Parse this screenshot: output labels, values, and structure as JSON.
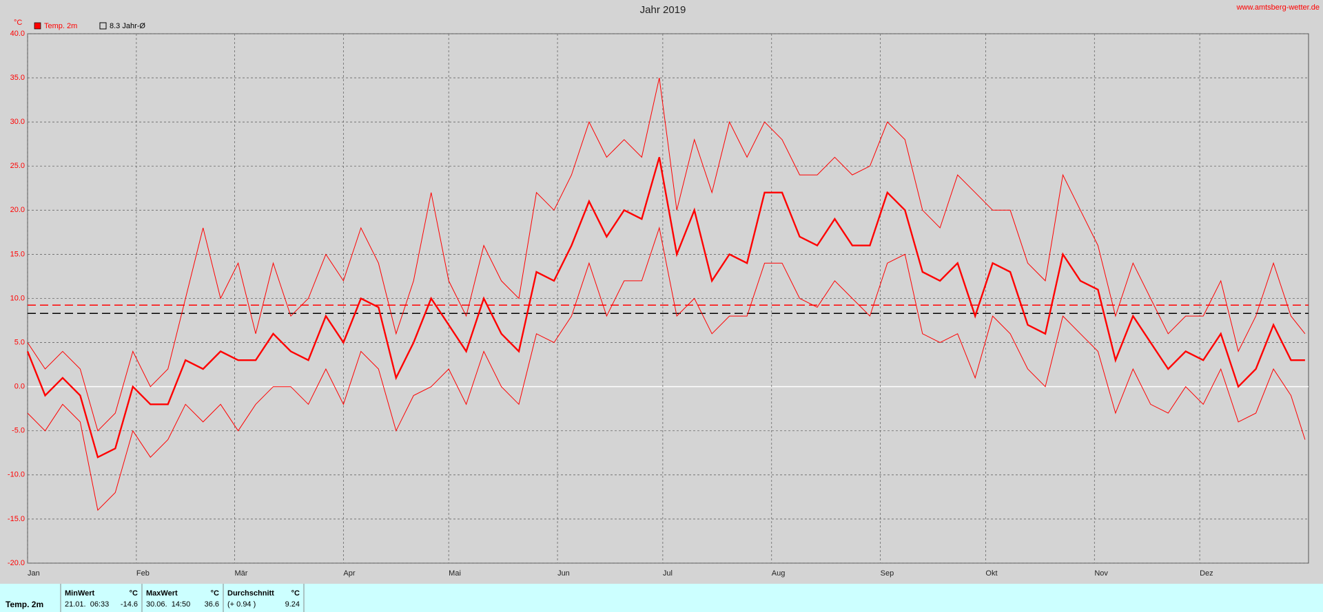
{
  "chart_data": {
    "type": "line",
    "title": "Jahr 2019",
    "source": "www.amtsberg-wetter.de",
    "y_unit": "°C",
    "x": [
      1,
      6,
      11,
      16,
      21,
      26,
      31,
      36,
      41,
      46,
      51,
      56,
      61,
      66,
      71,
      76,
      81,
      86,
      91,
      96,
      101,
      106,
      111,
      116,
      121,
      126,
      131,
      136,
      141,
      146,
      151,
      156,
      161,
      166,
      171,
      176,
      181,
      186,
      191,
      196,
      201,
      206,
      211,
      216,
      221,
      226,
      231,
      236,
      241,
      246,
      251,
      256,
      261,
      266,
      271,
      276,
      281,
      286,
      291,
      296,
      301,
      306,
      311,
      316,
      321,
      326,
      331,
      336,
      341,
      346,
      351,
      356,
      361,
      365
    ],
    "series": [
      {
        "color": "#ff0000",
        "values": [
          5,
          2,
          4,
          2,
          -5,
          -3,
          4,
          0,
          2,
          10,
          18,
          10,
          14,
          6,
          14,
          8,
          10,
          15,
          12,
          18,
          14,
          6,
          12,
          22,
          12,
          8,
          16,
          12,
          10,
          22,
          20,
          24,
          30,
          26,
          28,
          26,
          35,
          20,
          28,
          22,
          30,
          26,
          30,
          28,
          24,
          24,
          26,
          24,
          25,
          30,
          28,
          20,
          18,
          24,
          22,
          20,
          20,
          14,
          12,
          24,
          20,
          16,
          8,
          14,
          10,
          6,
          8,
          8,
          12,
          4,
          8,
          14,
          8,
          6
        ]
      },
      {
        "name": "Temp. 2m",
        "color": "#ff0000",
        "values": [
          4,
          -1,
          1,
          -1,
          -8,
          -7,
          0,
          -2,
          -2,
          3,
          2,
          4,
          3,
          3,
          6,
          4,
          3,
          8,
          5,
          10,
          9,
          1,
          5,
          10,
          7,
          4,
          10,
          6,
          4,
          13,
          12,
          16,
          21,
          17,
          20,
          19,
          26,
          15,
          20,
          12,
          15,
          14,
          22,
          22,
          17,
          16,
          19,
          16,
          16,
          22,
          20,
          13,
          12,
          14,
          8,
          14,
          13,
          7,
          6,
          15,
          12,
          11,
          3,
          8,
          5,
          2,
          4,
          3,
          6,
          0,
          2,
          7,
          3,
          3
        ]
      },
      {
        "color": "#ff0000",
        "values": [
          -3,
          -5,
          -2,
          -4,
          -14,
          -12,
          -5,
          -8,
          -6,
          -2,
          -4,
          -2,
          -5,
          -2,
          0,
          0,
          -2,
          2,
          -2,
          4,
          2,
          -5,
          -1,
          0,
          2,
          -2,
          4,
          0,
          -2,
          6,
          5,
          8,
          14,
          8,
          12,
          12,
          18,
          8,
          10,
          6,
          8,
          8,
          14,
          14,
          10,
          9,
          12,
          10,
          8,
          14,
          15,
          6,
          5,
          6,
          1,
          8,
          6,
          2,
          0,
          8,
          6,
          4,
          -3,
          2,
          -2,
          -3,
          0,
          -2,
          2,
          -4,
          -3,
          2,
          -1,
          -6
        ]
      }
    ],
    "reference_lines": [
      {
        "value": 9.24,
        "color": "#ff0000"
      },
      {
        "name": "8.3 Jahr-Ø",
        "value": 8.3,
        "color": "#000000"
      }
    ],
    "xlim": [
      1,
      366
    ],
    "xticks": [
      {
        "value": 1,
        "label": "Jan"
      },
      {
        "value": 32,
        "label": "Feb"
      },
      {
        "value": 60,
        "label": "Mär"
      },
      {
        "value": 91,
        "label": "Apr"
      },
      {
        "value": 121,
        "label": "Mai"
      },
      {
        "value": 152,
        "label": "Jun"
      },
      {
        "value": 182,
        "label": "Jul"
      },
      {
        "value": 213,
        "label": "Aug"
      },
      {
        "value": 244,
        "label": "Sep"
      },
      {
        "value": 274,
        "label": "Okt"
      },
      {
        "value": 305,
        "label": "Nov"
      },
      {
        "value": 335,
        "label": "Dez"
      }
    ],
    "ylim": [
      -20,
      40
    ],
    "yticks": [
      {
        "value": -20,
        "label": "-20.0"
      },
      {
        "value": -15,
        "label": "-15.0"
      },
      {
        "value": -10,
        "label": "-10.0"
      },
      {
        "value": -5,
        "label": "-5.0"
      },
      {
        "value": 0,
        "label": "0.0"
      },
      {
        "value": 5,
        "label": "5.0"
      },
      {
        "value": 10,
        "label": "10.0"
      },
      {
        "value": 15,
        "label": "15.0"
      },
      {
        "value": 20,
        "label": "20.0"
      },
      {
        "value": 25,
        "label": "25.0"
      },
      {
        "value": 30,
        "label": "30.0"
      },
      {
        "value": 35,
        "label": "35.0"
      },
      {
        "value": 40,
        "label": "40.0"
      }
    ],
    "grid": true
  },
  "stats": {
    "label": "Temp. 2m",
    "columns": [
      {
        "title": "MinWert",
        "unit": "°C",
        "when": "21.01.  06:33",
        "value": "-14.6"
      },
      {
        "title": "MaxWert",
        "unit": "°C",
        "when": "30.06.  14:50",
        "value": "36.6"
      },
      {
        "title": "Durchschnitt",
        "unit": "°C",
        "when": "(+ 0.94 )",
        "value": "9.24"
      }
    ]
  }
}
